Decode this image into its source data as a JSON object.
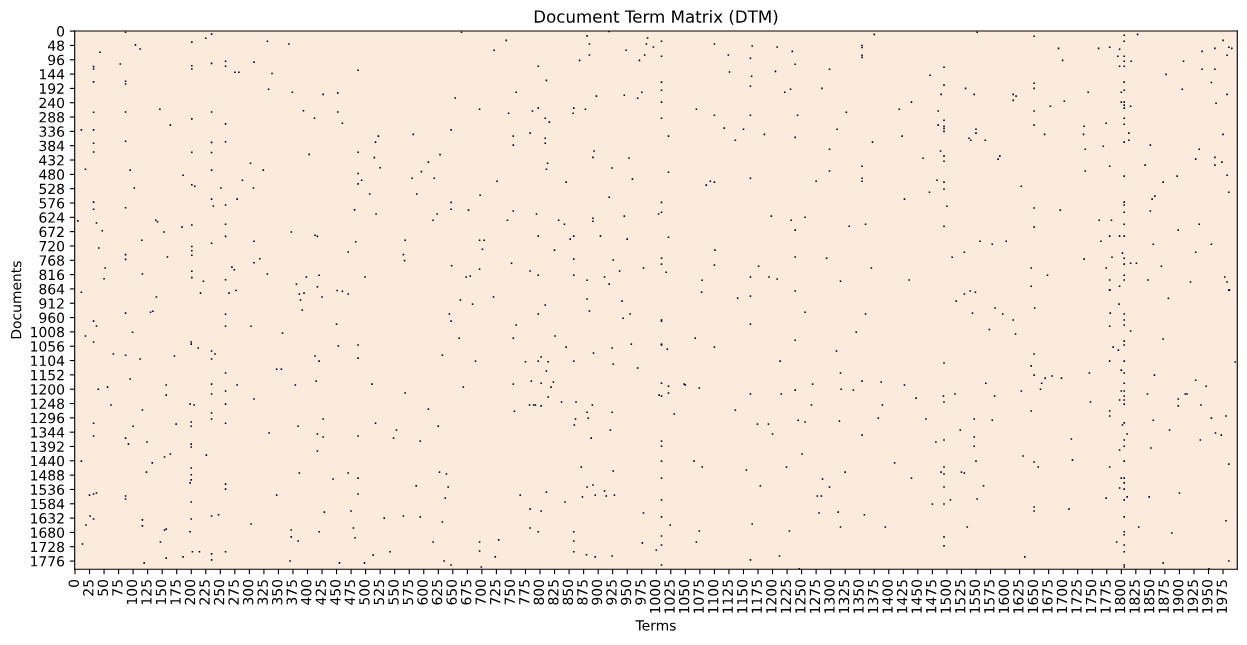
{
  "chart_data": {
    "type": "scatter",
    "title": "Document Term Matrix (DTM)",
    "xlabel": "Terms",
    "ylabel": "Documents",
    "marker": "square",
    "xlim": [
      -0.5,
      1999.5
    ],
    "ylim": [
      1803.5,
      -0.5
    ],
    "xticks": [
      0,
      25,
      50,
      75,
      100,
      125,
      150,
      175,
      200,
      225,
      250,
      275,
      300,
      325,
      350,
      375,
      400,
      425,
      450,
      475,
      500,
      525,
      550,
      575,
      600,
      625,
      650,
      675,
      700,
      725,
      750,
      775,
      800,
      825,
      850,
      875,
      900,
      925,
      950,
      975,
      1000,
      1025,
      1050,
      1075,
      1100,
      1125,
      1150,
      1175,
      1200,
      1225,
      1250,
      1275,
      1300,
      1325,
      1350,
      1375,
      1400,
      1425,
      1450,
      1475,
      1500,
      1525,
      1550,
      1575,
      1600,
      1625,
      1650,
      1675,
      1700,
      1725,
      1750,
      1775,
      1800,
      1825,
      1850,
      1875,
      1900,
      1925,
      1950,
      1975
    ],
    "yticks": [
      0,
      48,
      96,
      144,
      192,
      240,
      288,
      336,
      384,
      432,
      480,
      528,
      576,
      624,
      672,
      720,
      768,
      816,
      864,
      912,
      960,
      1008,
      1056,
      1104,
      1152,
      1200,
      1248,
      1296,
      1344,
      1392,
      1440,
      1488,
      1536,
      1584,
      1632,
      1680,
      1728,
      1776
    ],
    "series": [
      {
        "color": "#03051a",
        "x": [
          87,
          235,
          225,
          201,
          104,
          112,
          331,
          368,
          43,
          32,
          32,
          78,
          201,
          201,
          235,
          259,
          259,
          275,
          282,
          308,
          339,
          487,
          32,
          87,
          87,
          333,
          374,
          427,
          452,
          654,
          146,
          32,
          87,
          201,
          235,
          259,
          164,
          393,
          412,
          452,
          460,
          11,
          32,
          87,
          32,
          32,
          235,
          259,
          201,
          235,
          522,
          517,
          582,
          647,
          403,
          487,
          515,
          628,
          608,
          302,
          18,
          95,
          235,
          186,
          324,
          525,
          596,
          580,
          618,
          487,
          487,
          493,
          201,
          206,
          102,
          251,
          288,
          307,
          507,
          588,
          32,
          32,
          87,
          235,
          238,
          259,
          279,
          481,
          518,
          647,
          647,
          623,
          616,
          5,
          37,
          139,
          142,
          47,
          153,
          184,
          201,
          259,
          259,
          372,
          413,
          417,
          235,
          308,
          115,
          41,
          201,
          201,
          201,
          87,
          87,
          159,
          318,
          308,
          483,
          470,
          568,
          565,
          567,
          648,
          52,
          50,
          116,
          201,
          201,
          270,
          274,
          259,
          221,
          331,
          398,
          420,
          381,
          417,
          499,
          665,
          919,
          881,
          742,
          721,
          885,
          985,
          983,
          995,
          1009,
          948,
          885,
          868,
          971,
          980,
          1009,
          1100,
          1165,
          1208,
          1234,
          1124,
          1162,
          1239,
          1126,
          1205,
          1298,
          1164,
          1162,
          1231,
          1221,
          1285,
          797,
          811,
          759,
          897,
          945,
          968,
          975,
          1009,
          1009,
          1009,
          1009,
          696,
          746,
          787,
          797,
          809,
          816,
          857,
          858,
          878,
          1069,
          1100,
          1162,
          1243,
          1327,
          1117,
          1150,
          1136,
          1186,
          1239,
          1311,
          1298,
          754,
          754,
          783,
          809,
          809,
          1021,
          893,
          891,
          953,
          813,
          811,
          924,
          1021,
          726,
          845,
          959,
          1086,
          1093,
          1100,
          1162,
          1275,
          1298,
          697,
          919,
          1009,
          1009,
          1004,
          677,
          754,
          744,
          794,
          832,
          842,
          891,
          891,
          945,
          1198,
          1232,
          1256,
          1239,
          1332,
          696,
          704,
          701,
          797,
          852,
          858,
          904,
          950,
          1021,
          825,
          751,
          858,
          926,
          1009,
          1009,
          1101,
          1100,
          1239,
          1293,
          1176,
          696,
          783,
          797,
          858,
          881,
          911,
          919,
          937,
          978,
          1017,
          1079,
          1162,
          1194,
          1208,
          1317,
          673,
          680,
          720,
          1375,
          1552,
          1650,
          1805,
          1828,
          1805,
          1354,
          1354,
          1354,
          1354,
          1692,
          1761,
          1780,
          1797,
          1794,
          1805,
          1805,
          1817,
          1797,
          1805,
          1699,
          1975,
          1985,
          1990,
          1939,
          1961,
          1982,
          1907,
          1939,
          1961,
          1877,
          1955,
          1905,
          1982,
          1963,
          1495,
          1471,
          1495,
          1650,
          1650,
          1805,
          1805,
          1800,
          1743,
          1532,
          1547,
          1490,
          1614,
          1619,
          1614,
          1702,
          1678,
          1650,
          1800,
          1805,
          1805,
          1805,
          1816,
          1439,
          1418,
          1485,
          1805,
          1805,
          1774,
          1736,
          1735,
          1813,
          1813,
          1805,
          1485,
          1495,
          1495,
          1495,
          1495,
          1550,
          1550,
          1538,
          1541,
          1566,
          1650,
          1668,
          1423,
          1372,
          1975,
          1850,
          1934,
          1738,
          1769,
          1489,
          1495,
          1495,
          1459,
          1588,
          1591,
          1354,
          1354,
          1354,
          1738,
          1780,
          1841,
          1805,
          1928,
          1961,
          1973,
          1961,
          1982,
          1896,
          1872,
          1483,
          1495,
          1495,
          1628,
          1470,
          1427,
          1985,
          1858,
          1853,
          1805,
          1805,
          1805,
          1850,
          1650,
          1695,
          1500,
          1360,
          1495,
          1650,
          1762,
          1783,
          1805,
          1898,
          1934,
          1780,
          1797,
          1805,
          1765,
          1855,
          1955,
          1557,
          1578,
          1602,
          1530,
          1509,
          1736,
          1784,
          1802,
          1805,
          1805,
          1816,
          1826,
          1869,
          1928,
          1370,
          1435,
          1645,
          1673,
          1774,
          1780,
          1805,
          1805,
          1797,
          1780,
          1846,
          1919,
          1978,
          1982,
          1985,
          1645,
          11,
          140,
          216,
          265,
          277,
          386,
          394,
          388,
          425,
          451,
          460,
          470,
          87,
          130,
          134,
          32,
          37,
          259,
          259,
          303,
          391,
          450,
          644,
          647,
          18,
          32,
          99,
          357,
          200,
          200,
          212,
          235,
          241,
          235,
          66,
          87,
          112,
          171,
          413,
          420,
          453,
          487,
          487,
          632,
          347,
          355,
          95,
          259,
          415,
          40,
          56,
          157,
          157,
          235,
          235,
          259,
          279,
          379,
          511,
          568,
          62,
          116,
          198,
          205,
          259,
          308,
          235,
          235,
          32,
          100,
          174,
          200,
          200,
          259,
          384,
          427,
          517,
          608,
          625,
          32,
          87,
          92,
          124,
          200,
          200,
          334,
          417,
          427,
          417,
          487,
          548,
          553,
          594,
          11,
          133,
          154,
          164,
          226,
          123,
          200,
          200,
          200,
          198,
          259,
          259,
          386,
          444,
          470,
          487,
          487,
          587,
          627,
          639,
          642,
          637,
          25,
          32,
          37,
          87,
          87,
          347,
          200,
          26,
          32,
          19,
          116,
          116,
          200,
          235,
          247,
          303,
          429,
          475,
          532,
          565,
          594,
          632,
          154,
          157,
          198,
          372,
          372,
          384,
          420,
          479,
          482,
          147,
          13,
          616,
          157,
          186,
          202,
          214,
          235,
          235,
          259,
          119,
          370,
          455,
          498,
          513,
          542,
          635,
          647,
          663,
          684,
          809,
          797,
          881,
          885,
          941,
          955,
          943,
          1078,
          1140,
          1162,
          1239,
          1256,
          1162,
          1009,
          1009,
          759,
          661,
          754,
          826,
          845,
          924,
          957,
          1009,
          1009,
          1019,
          1067,
          1100,
          1239,
          1310,
          689,
          775,
          797,
          802,
          814,
          811,
          858,
          892,
          926,
          968,
          1213,
          1317,
          668,
          754,
          785,
          802,
          823,
          819,
          814,
          837,
          862,
          782,
          789,
          792,
          802,
          890,
          756,
          881,
          883,
          861,
          859,
          924,
          921,
          888,
          1009,
          1021,
          1021,
          1005,
          1009,
          1048,
          1050,
          1074,
          1031,
          1162,
          1215,
          1239,
          1269,
          1318,
          1267,
          1136,
          1174,
          1193,
          1200,
          1244,
          1256,
          1315,
          1009,
          1009,
          1009,
          1009,
          1009,
          1009,
          1009,
          1009,
          1000,
          1009,
          1065,
          1079,
          1251,
          1224,
          1155,
          1325,
          1286,
          1298,
          1277,
          1284,
          1179,
          1280,
          1313,
          1317,
          1165,
          1229,
          1074,
          1069,
          1212,
          1162,
          1246,
          1024,
          871,
          926,
          881,
          891,
          873,
          895,
          911,
          914,
          928,
          811,
          766,
          843,
          783,
          802,
          978,
          783,
          797,
          858,
          858,
          858,
          729,
          696,
          696,
          723,
          699,
          880,
          895,
          924,
          976,
          1530,
          1540,
          1549,
          1516,
          1583,
          1596,
          1544,
          1614,
          1651,
          1618,
          1573,
          1360,
          1344,
          1780,
          1796,
          1881,
          1986,
          1781,
          1805,
          1805,
          1805,
          1780,
          1816,
          1872,
          1805,
          1805,
          1786,
          1795,
          1780,
          1805,
          1996,
          1495,
          1645,
          1650,
          1650,
          1669,
          1681,
          1697,
          1663,
          1661,
          1628,
          1745,
          1800,
          1805,
          1805,
          1800,
          1805,
          1805,
          1797,
          1805,
          1805,
          1747,
          1857,
          1928,
          1946,
          1845,
          1898,
          1898,
          1910,
          1913,
          1937,
          1955,
          1980,
          1354,
          1387,
          1427,
          1339,
          1447,
          1494,
          1495,
          1514,
          1567,
          1582,
          1389,
          1382,
          1464,
          1547,
          1578,
          1645,
          1780,
          1780,
          1802,
          1805,
          1810,
          1805,
          1805,
          1797,
          1805,
          1855,
          1883,
          1962,
          1972,
          1936,
          1851,
          1354,
          1523,
          1547,
          1495,
          1481,
          1547,
          1714,
          1716,
          1631,
          1650,
          1657,
          1550,
          1410,
          1495,
          1490,
          1495,
          1525,
          1530,
          1439,
          1780,
          1800,
          1805,
          1805,
          1797,
          1805,
          1810,
          1805,
          1774,
          1848,
          1900,
          1985,
          1495,
          1563,
          1552,
          1506,
          1495,
          1475,
          1650,
          1650,
          1710,
          1358,
          1394,
          1535,
          1495,
          1495,
          1805,
          1805,
          1805,
          1792,
          1805,
          1805,
          1805,
          1805,
          1830,
          1887,
          1980,
          1872,
          1985,
          1951,
          1634
        ],
        "values": [
          4,
          10,
          24,
          37,
          46,
          60,
          34,
          43,
          71,
          119,
          127,
          110,
          116,
          127,
          108,
          101,
          118,
          138,
          138,
          104,
          142,
          131,
          170,
          168,
          177,
          195,
          205,
          212,
          207,
          224,
          262,
          272,
          271,
          294,
          271,
          311,
          315,
          267,
          292,
          271,
          309,
          331,
          331,
          369,
          376,
          405,
          373,
          371,
          406,
          407,
          352,
          372,
          346,
          331,
          413,
          406,
          424,
          414,
          439,
          443,
          463,
          466,
          466,
          483,
          466,
          458,
          471,
          493,
          493,
          477,
          512,
          500,
          515,
          520,
          526,
          526,
          500,
          526,
          546,
          546,
          573,
          597,
          592,
          563,
          586,
          583,
          563,
          599,
          613,
          574,
          597,
          613,
          634,
          636,
          643,
          634,
          639,
          669,
          673,
          657,
          650,
          647,
          688,
          673,
          684,
          688,
          711,
          704,
          701,
          727,
          722,
          736,
          751,
          749,
          765,
          757,
          763,
          776,
          706,
          740,
          701,
          749,
          769,
          786,
          794,
          830,
          814,
          805,
          826,
          791,
          800,
          833,
          838,
          814,
          824,
          818,
          848,
          857,
          824,
          4,
          1,
          16,
          31,
          64,
          43,
          23,
          43,
          53,
          34,
          64,
          80,
          98,
          98,
          80,
          84,
          43,
          50,
          53,
          68,
          80,
          91,
          111,
          137,
          135,
          128,
          151,
          185,
          195,
          205,
          192,
          118,
          165,
          205,
          218,
          215,
          225,
          205,
          171,
          198,
          238,
          292,
          262,
          275,
          268,
          258,
          292,
          305,
          275,
          258,
          262,
          262,
          282,
          282,
          282,
          272,
          325,
          329,
          366,
          346,
          356,
          329,
          396,
          352,
          382,
          342,
          359,
          376,
          352,
          402,
          423,
          425,
          443,
          463,
          459,
          473,
          503,
          506,
          496,
          516,
          503,
          506,
          493,
          503,
          469,
          550,
          557,
          574,
          607,
          613,
          600,
          603,
          634,
          613,
          634,
          647,
          627,
          637,
          620,
          620,
          634,
          624,
          667,
          654,
          701,
          701,
          731,
          687,
          697,
          687,
          687,
          697,
          691,
          734,
          778,
          764,
          767,
          761,
          781,
          734,
          784,
          757,
          761,
          788,
          798,
          804,
          818,
          818,
          835,
          824,
          848,
          804,
          794,
          808,
          835,
          824,
          824,
          831,
          838,
          824,
          821,
          891,
          11,
          4,
          17,
          14,
          11,
          34,
          48,
          55,
          81,
          88,
          58,
          58,
          54,
          61,
          84,
          84,
          101,
          101,
          118,
          118,
          98,
          31,
          54,
          58,
          68,
          58,
          81,
          101,
          128,
          128,
          145,
          172,
          195,
          212,
          242,
          121,
          148,
          181,
          175,
          192,
          171,
          198,
          205,
          205,
          192,
          212,
          212,
          212,
          218,
          232,
          235,
          252,
          268,
          238,
          238,
          248,
          258,
          252,
          238,
          262,
          268,
          292,
          312,
          309,
          319,
          346,
          342,
          366,
          372,
          315,
          299,
          319,
          326,
          336,
          329,
          342,
          359,
          366,
          366,
          315,
          346,
          352,
          372,
          346,
          382,
          396,
          396,
          386,
          402,
          419,
          436,
          426,
          429,
          419,
          453,
          493,
          503,
          469,
          453,
          449,
          486,
          429,
          423,
          439,
          449,
          483,
          486,
          506,
          500,
          506,
          530,
          520,
          540,
          563,
          540,
          553,
          563,
          573,
          583,
          607,
          603,
          593,
          600,
          587,
          647,
          654,
          657,
          634,
          634,
          647,
          667,
          647,
          687,
          687,
          687,
          704,
          714,
          714,
          704,
          714,
          704,
          741,
          758,
          764,
          758,
          744,
          761,
          781,
          778,
          778,
          788,
          741,
          794,
          834,
          794,
          818,
          794,
          834,
          818,
          834,
          855,
          868,
          834,
          841,
          824,
          841,
          868,
          855,
          875,
          891,
          878,
          878,
          869,
          881,
          878,
          901,
          891,
          869,
          872,
          881,
          945,
          942,
          939,
          972,
          988,
          949,
          989,
          989,
          935,
          982,
          948,
          972,
          1022,
          1042,
          1009,
          1012,
          1042,
          1049,
          1062,
          1072,
          1082,
          1099,
          1082,
          1086,
          1099,
          1089,
          1089,
          1106,
          1055,
          1052,
          1096,
          1086,
          1133,
          1133,
          1166,
          1146,
          1173,
          1200,
          1193,
          1186,
          1220,
          1183,
          1216,
          1206,
          1186,
          1186,
          1183,
          1213,
          1253,
          1270,
          1250,
          1253,
          1250,
          1233,
          1280,
          1300,
          1314,
          1324,
          1317,
          1310,
          1324,
          1314,
          1324,
          1300,
          1314,
          1267,
          1324,
          1357,
          1364,
          1384,
          1377,
          1384,
          1394,
          1347,
          1350,
          1360,
          1407,
          1357,
          1364,
          1337,
          1374,
          1441,
          1447,
          1427,
          1417,
          1421,
          1478,
          1464,
          1487,
          1504,
          1514,
          1518,
          1535,
          1481,
          1501,
          1481,
          1498,
          1551,
          1524,
          1478,
          1484,
          1528,
          1565,
          1555,
          1551,
          1548,
          1558,
          1568,
          1555,
          1578,
          1625,
          1635,
          1655,
          1638,
          1658,
          1635,
          1625,
          1621,
          1652,
          1612,
          1608,
          1632,
          1625,
          1628,
          1645,
          1672,
          1669,
          1678,
          1672,
          1695,
          1709,
          1678,
          1665,
          1698,
          1712,
          1719,
          1712,
          1766,
          1762,
          1745,
          1745,
          1752,
          1772,
          1745,
          1782,
          1776,
          1782,
          1782,
          1756,
          1745,
          1776,
          1789,
          901,
          915,
          918,
          948,
          898,
          938,
          905,
          948,
          962,
          875,
          895,
          888,
          871,
          942,
          982,
          968,
          972,
          985,
          1029,
          1029,
          1022,
          1059,
          1062,
          1049,
          1049,
          1052,
          1066,
          1029,
          1059,
          1036,
          1072,
          1106,
          1108,
          1106,
          1092,
          1108,
          1139,
          1106,
          1079,
          1116,
          1129,
          1106,
          1146,
          1193,
          1183,
          1173,
          1180,
          1176,
          1193,
          1226,
          1243,
          1243,
          1253,
          1253,
          1253,
          1256,
          1253,
          1274,
          1277,
          1297,
          1300,
          1320,
          1277,
          1337,
          1364,
          1180,
          1190,
          1213,
          1220,
          1223,
          1183,
          1186,
          1196,
          1283,
          1216,
          1216,
          1203,
          1183,
          1200,
          1253,
          1270,
          1317,
          1317,
          1350,
          1304,
          1310,
          1307,
          1374,
          1391,
          1441,
          1498,
          1571,
          1628,
          1692,
          1722,
          1739,
          1789,
          1441,
          1461,
          1417,
          1461,
          1471,
          1478,
          1501,
          1528,
          1558,
          1558,
          1524,
          1615,
          1612,
          1662,
          1652,
          1675,
          1675,
          1712,
          1759,
          1772,
          1802,
          1655,
          1461,
          1474,
          1528,
          1521,
          1561,
          1555,
          1541,
          1558,
          1555,
          1545,
          1555,
          1578,
          1602,
          1608,
          1615,
          1665,
          1678,
          1678,
          1709,
          1745,
          1705,
          1712,
          1742,
          1762,
          1796,
          1755,
          1762,
          1759,
          1715,
          881,
          871,
          875,
          905,
          928,
          948,
          945,
          968,
          928,
          1015,
          1000,
          948,
          1009,
          867,
          915,
          895,
          868,
          945,
          948,
          968,
          985,
          989,
          1005,
          1032,
          1039,
          1052,
          1059,
          1069,
          1106,
          1106,
          1109,
          1112,
          1122,
          1082,
          1153,
          1163,
          1156,
          1163,
          1180,
          1200,
          1206,
          1146,
          1136,
          1146,
          1180,
          1206,
          1206,
          1223,
          1236,
          1236,
          1250,
          1243,
          1153,
          1170,
          1190,
          1216,
          1233,
          1256,
          1216,
          1216,
          1253,
          1297,
          1290,
          1173,
          1176,
          1186,
          1203,
          1230,
          1223,
          1243,
          1216,
          1180,
          1223,
          1253,
          1297,
          1300,
          1300,
          1304,
          1273,
          1273,
          1290,
          1320,
          1313,
          1350,
          1370,
          1391,
          1404,
          1441,
          1304,
          1337,
          1347,
          1354,
          1370,
          1397,
          1354,
          1337,
          1360,
          1370,
          1377,
          1391,
          1367,
          1437,
          1424,
          1444,
          1461,
          1441,
          1447,
          1461,
          1478,
          1484,
          1478,
          1481,
          1498,
          1461,
          1498,
          1498,
          1514,
          1531,
          1535,
          1561,
          1571,
          1565,
          1561,
          1548,
          1451,
          1528,
          1524,
          1568,
          1571,
          1585,
          1585,
          1595,
          1608,
          1602,
          1621,
          1662,
          1662,
          1695,
          1725,
          1628,
          1678,
          1688,
          1712,
          1722,
          1745,
          1789,
          1796,
          1662,
          1682,
          1641,
          1782,
          1776,
          1802,
          1762
        ]
      }
    ]
  }
}
